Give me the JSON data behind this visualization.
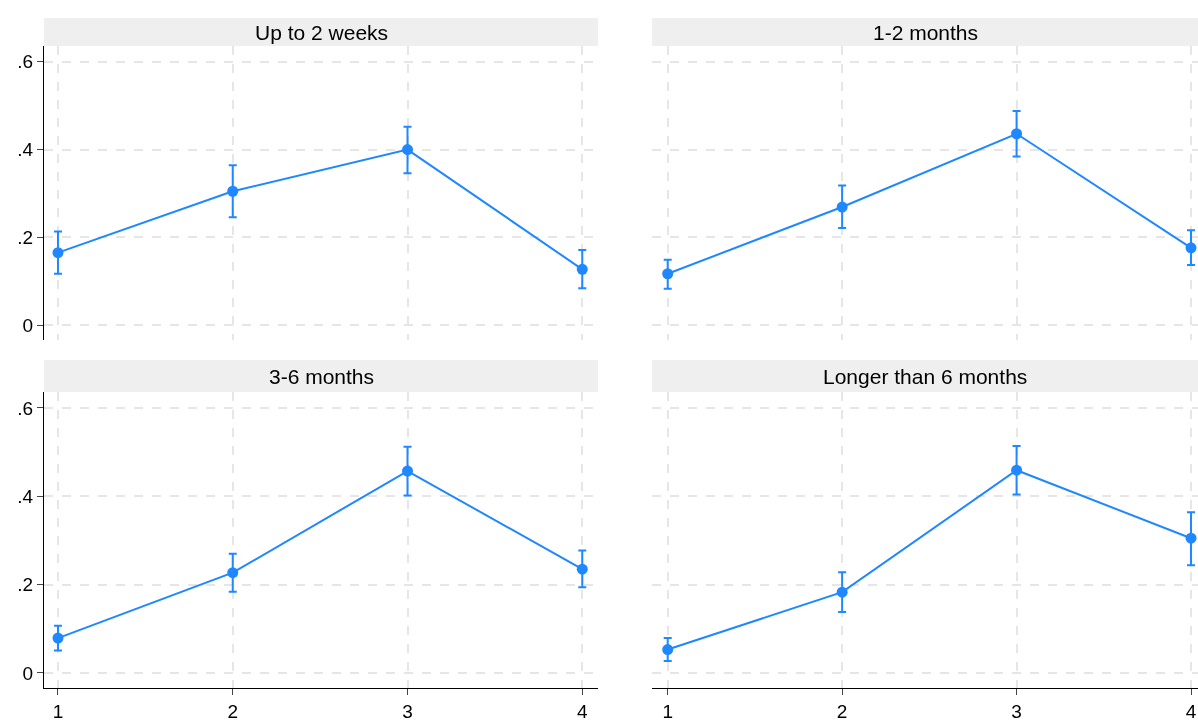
{
  "chart_data": [
    {
      "type": "line",
      "title": "Up to 2 weeks",
      "x": [
        1,
        2,
        3,
        4
      ],
      "color": "#1f87ff",
      "values": [
        0.165,
        0.305,
        0.4,
        0.127
      ],
      "errors": [
        [
          0.117,
          0.213
        ],
        [
          0.246,
          0.364
        ],
        [
          0.346,
          0.452
        ],
        [
          0.084,
          0.171
        ]
      ],
      "xlim": [
        0.92,
        4.09
      ],
      "xticks": [
        1,
        2,
        3,
        4
      ],
      "ylim": [
        -0.034,
        0.636
      ],
      "yticks": [
        0,
        {
          "value": 0.2,
          "label": ".2"
        },
        {
          "value": 0.4,
          "label": ".4"
        },
        {
          "value": 0.6,
          "label": ".6"
        }
      ],
      "grid": true,
      "marker": "circle",
      "line_style": "solid",
      "tick_labels": "y"
    },
    {
      "type": "line",
      "title": "1-2 months",
      "x": [
        1,
        2,
        3,
        4
      ],
      "color": "#1f87ff",
      "values": [
        0.117,
        0.269,
        0.436,
        0.176
      ],
      "errors": [
        [
          0.083,
          0.149
        ],
        [
          0.221,
          0.318
        ],
        [
          0.384,
          0.488
        ],
        [
          0.137,
          0.216
        ]
      ],
      "xlim": [
        0.91,
        4.04
      ],
      "xticks": [
        1,
        2,
        3,
        4
      ],
      "ylim": [
        -0.034,
        0.636
      ],
      "yticks": [
        0,
        0.2,
        0.4,
        0.6
      ],
      "grid": true,
      "marker": "circle",
      "line_style": "solid",
      "tick_labels": false
    },
    {
      "type": "line",
      "title": "3-6 months",
      "x": [
        1,
        2,
        3,
        4
      ],
      "color": "#1f87ff",
      "values": [
        0.079,
        0.227,
        0.457,
        0.235
      ],
      "errors": [
        [
          0.051,
          0.107
        ],
        [
          0.184,
          0.27
        ],
        [
          0.402,
          0.512
        ],
        [
          0.194,
          0.277
        ]
      ],
      "xlim": [
        0.92,
        4.09
      ],
      "xticks": [
        1,
        2,
        3,
        4
      ],
      "ylim": [
        -0.034,
        0.636
      ],
      "yticks": [
        0,
        {
          "value": 0.2,
          "label": ".2"
        },
        {
          "value": 0.4,
          "label": ".4"
        },
        {
          "value": 0.6,
          "label": ".6"
        }
      ],
      "grid": true,
      "marker": "circle",
      "line_style": "solid"
    },
    {
      "type": "line",
      "title": "Longer than 6 months",
      "x": [
        1,
        2,
        3,
        4
      ],
      "color": "#1f87ff",
      "values": [
        0.053,
        0.183,
        0.459,
        0.305
      ],
      "errors": [
        [
          0.027,
          0.079
        ],
        [
          0.138,
          0.228
        ],
        [
          0.404,
          0.514
        ],
        [
          0.244,
          0.364
        ]
      ],
      "xlim": [
        0.91,
        4.04
      ],
      "xticks": [
        1,
        2,
        3,
        4
      ],
      "ylim": [
        -0.034,
        0.636
      ],
      "yticks": [
        0,
        0.2,
        0.4,
        0.6
      ],
      "grid": true,
      "marker": "circle",
      "line_style": "solid",
      "tick_labels": "x"
    }
  ]
}
